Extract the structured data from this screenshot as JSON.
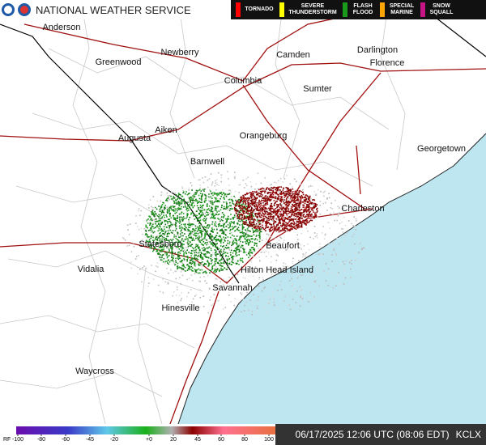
{
  "header": {
    "title": "NATIONAL WEATHER SERVICE"
  },
  "warnings": [
    {
      "label": "TORNADO",
      "color": "#ff0000"
    },
    {
      "label": "SEVERE THUNDERSTORM",
      "color": "#ffff00"
    },
    {
      "label": "FLASH FLOOD",
      "color": "#1a9a1a"
    },
    {
      "label": "SPECIAL MARINE",
      "color": "#ffa500"
    },
    {
      "label": "SNOW SQUALL",
      "color": "#c71585"
    }
  ],
  "cities": [
    {
      "name": "Anderson"
    },
    {
      "name": "Greenwood"
    },
    {
      "name": "Newberry"
    },
    {
      "name": "Camden"
    },
    {
      "name": "Darlington"
    },
    {
      "name": "Florence"
    },
    {
      "name": "Columbia"
    },
    {
      "name": "Sumter"
    },
    {
      "name": "Aiken"
    },
    {
      "name": "Augusta"
    },
    {
      "name": "Orangeburg"
    },
    {
      "name": "Georgetown"
    },
    {
      "name": "Barnwell"
    },
    {
      "name": "Charleston"
    },
    {
      "name": "Statesboro"
    },
    {
      "name": "Beaufort"
    },
    {
      "name": "Hilton Head Island"
    },
    {
      "name": "Vidalia"
    },
    {
      "name": "Savannah"
    },
    {
      "name": "Hinesville"
    },
    {
      "name": "Waycross"
    }
  ],
  "scale": {
    "label": "RF",
    "ticks": [
      -100,
      -80,
      -60,
      -45,
      -20,
      {
        "value": 0,
        "label": "+0"
      },
      20,
      45,
      60,
      80,
      100
    ]
  },
  "footer": {
    "timestamp": "06/17/2025 12:06 UTC (08:06 EDT)",
    "station": "KCLX"
  }
}
